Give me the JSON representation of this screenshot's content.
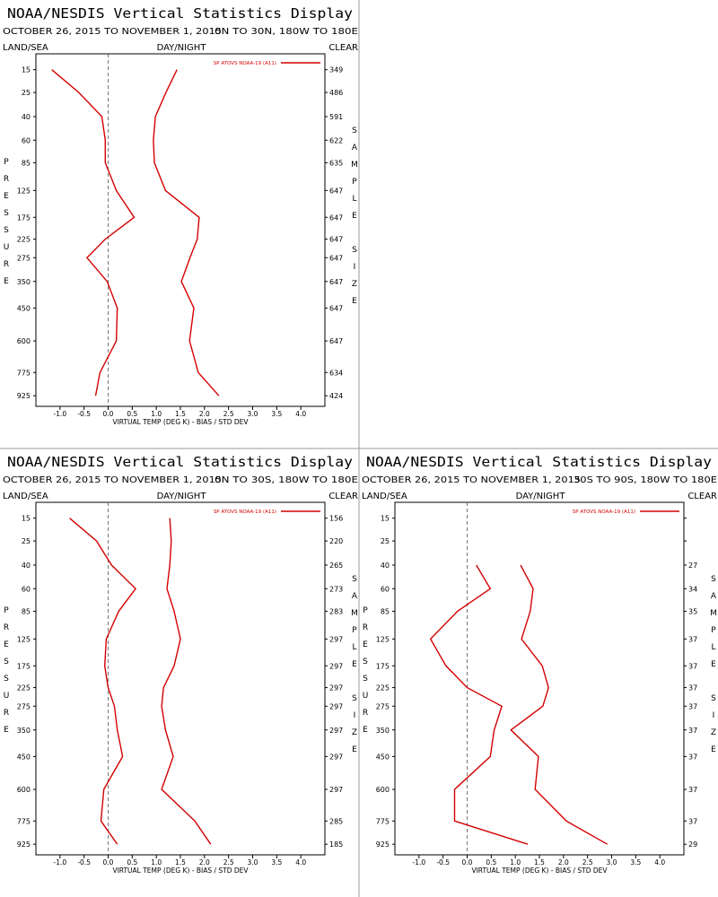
{
  "chart_data": [
    {
      "type": "line",
      "title": "NOAA/NESDIS Vertical Statistics Display",
      "subtitle": "OCTOBER 26, 2015 TO NOVEMBER 1, 2015",
      "region": "0N TO 30N, 180W TO 180E",
      "surface": "LAND/SEA",
      "time_of_day": "DAY/NIGHT",
      "sky": "CLEAR",
      "xlabel": "VIRTUAL TEMP (DEG K) - BIAS / STD DEV",
      "ylabel": "PRESSURE",
      "y2label": "SAMPLE SIZE",
      "xlim": [
        -1.5,
        4.5
      ],
      "xticks": [
        {
          "value": -1,
          "label": "-1.0"
        },
        {
          "value": -0.5,
          "label": "-0.5"
        },
        {
          "value": 0,
          "label": "0.0"
        },
        {
          "value": 0.5,
          "label": "0.5"
        },
        {
          "value": 1,
          "label": "1.0"
        },
        {
          "value": 1.5,
          "label": "1.5"
        },
        {
          "value": 2,
          "label": "2.0"
        },
        {
          "value": 2.5,
          "label": "2.5"
        },
        {
          "value": 3,
          "label": "3.0"
        },
        {
          "value": 3.5,
          "label": "3.5"
        },
        {
          "value": 4,
          "label": "4.0"
        }
      ],
      "ylim": [
        1000,
        10
      ],
      "yscale": "power",
      "yexponent": 0.286,
      "yticks": [
        15,
        25,
        40,
        60,
        85,
        125,
        175,
        225,
        275,
        350,
        450,
        600,
        775,
        925
      ],
      "sample_sizes": [
        349,
        486,
        591,
        622,
        635,
        647,
        647,
        647,
        647,
        647,
        647,
        647,
        634,
        424
      ],
      "series": [
        {
          "name": "SP ATOVS NOAA-19 (A11)",
          "color": "#d40000",
          "values": [
            -1.17,
            -0.61,
            -0.13,
            -0.06,
            -0.06,
            0.17,
            0.54,
            -0.06,
            -0.44,
            -0.02,
            0.19,
            0.17,
            -0.17,
            -0.26
          ],
          "std_dev": [
            1.43,
            1.2,
            0.98,
            0.94,
            0.96,
            1.19,
            1.89,
            1.85,
            1.7,
            1.52,
            1.78,
            1.69,
            1.87,
            2.3
          ]
        }
      ]
    },
    {
      "type": "line",
      "title": "NOAA/NESDIS Vertical Statistics Display",
      "subtitle": "OCTOBER 26, 2015 TO NOVEMBER 1, 2015",
      "region": "0N TO 30S, 180W TO 180E",
      "surface": "LAND/SEA",
      "time_of_day": "DAY/NIGHT",
      "sky": "CLEAR",
      "xlabel": "VIRTUAL TEMP (DEG K) - BIAS / STD DEV",
      "ylabel": "PRESSURE",
      "y2label": "SAMPLE SIZE",
      "xlim": [
        -1.5,
        4.5
      ],
      "xticks": [
        {
          "value": -1,
          "label": "-1.0"
        },
        {
          "value": -0.5,
          "label": "-0.5"
        },
        {
          "value": 0,
          "label": "0.0"
        },
        {
          "value": 0.5,
          "label": "0.5"
        },
        {
          "value": 1,
          "label": "1.0"
        },
        {
          "value": 1.5,
          "label": "1.5"
        },
        {
          "value": 2,
          "label": "2.0"
        },
        {
          "value": 2.5,
          "label": "2.5"
        },
        {
          "value": 3,
          "label": "3.0"
        },
        {
          "value": 3.5,
          "label": "3.5"
        },
        {
          "value": 4,
          "label": "4.0"
        }
      ],
      "ylim": [
        1000,
        10
      ],
      "yscale": "power",
      "yexponent": 0.286,
      "yticks": [
        15,
        25,
        40,
        60,
        85,
        125,
        175,
        225,
        275,
        350,
        450,
        600,
        775,
        925
      ],
      "sample_sizes": [
        156,
        220,
        265,
        273,
        283,
        297,
        297,
        297,
        297,
        297,
        297,
        297,
        285,
        185
      ],
      "series": [
        {
          "name": "SP ATOVS NOAA-19 (A11)",
          "color": "#d40000",
          "values": [
            -0.8,
            -0.24,
            0.07,
            0.57,
            0.22,
            -0.04,
            -0.07,
            0,
            0.13,
            0.19,
            0.3,
            -0.09,
            -0.15,
            0.19
          ],
          "std_dev": [
            1.28,
            1.31,
            1.28,
            1.22,
            1.37,
            1.5,
            1.37,
            1.15,
            1.11,
            1.19,
            1.35,
            1.11,
            1.8,
            2.13
          ]
        }
      ]
    },
    {
      "type": "line",
      "title": "NOAA/NESDIS Vertical Statistics Display",
      "subtitle": "OCTOBER 26, 2015 TO NOVEMBER 1, 2015",
      "region": "30S TO 90S, 180W TO 180E",
      "surface": "LAND/SEA",
      "time_of_day": "DAY/NIGHT",
      "sky": "CLEAR",
      "xlabel": "VIRTUAL TEMP (DEG K) - BIAS / STD DEV",
      "ylabel": "PRESSURE",
      "y2label": "SAMPLE SIZE",
      "xlim": [
        -1.5,
        4.5
      ],
      "xticks": [
        {
          "value": -1,
          "label": "-1.0"
        },
        {
          "value": -0.5,
          "label": "-0.5"
        },
        {
          "value": 0,
          "label": "0.0"
        },
        {
          "value": 0.5,
          "label": "0.5"
        },
        {
          "value": 1,
          "label": "1.0"
        },
        {
          "value": 1.5,
          "label": "1.5"
        },
        {
          "value": 2,
          "label": "2.0"
        },
        {
          "value": 2.5,
          "label": "2.5"
        },
        {
          "value": 3,
          "label": "3.0"
        },
        {
          "value": 3.5,
          "label": "3.5"
        },
        {
          "value": 4,
          "label": "4.0"
        }
      ],
      "ylim": [
        1000,
        10
      ],
      "yscale": "power",
      "yexponent": 0.286,
      "yticks": [
        15,
        25,
        40,
        60,
        85,
        125,
        175,
        225,
        275,
        350,
        450,
        600,
        775,
        925
      ],
      "sample_sizes": [
        null,
        null,
        27,
        34,
        35,
        37,
        37,
        37,
        37,
        37,
        37,
        37,
        37,
        29
      ],
      "series": [
        {
          "name": "SP ATOVS NOAA-19 (A11)",
          "color": "#d40000",
          "values": [
            null,
            null,
            0.19,
            0.48,
            -0.2,
            -0.76,
            -0.44,
            0,
            0.72,
            0.56,
            0.48,
            -0.26,
            -0.26,
            1.26
          ],
          "std_dev": [
            null,
            null,
            1.11,
            1.37,
            1.31,
            1.13,
            1.56,
            1.69,
            1.57,
            0.91,
            1.48,
            1.41,
            2.06,
            2.91
          ]
        }
      ]
    }
  ]
}
